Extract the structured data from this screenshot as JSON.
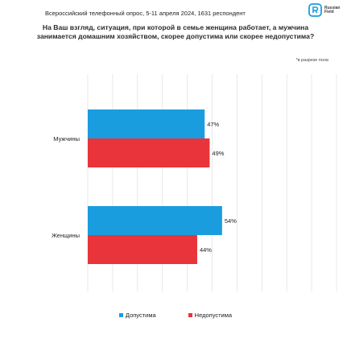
{
  "header": {
    "survey_info": "Всероссийский телефонный опрос, 5-11 апреля 2024, 1631 респондент",
    "brand_line1": "Russian",
    "brand_line2": "Field"
  },
  "question": "На Ваш взгляд, ситуация, при которой в семье женщина работает, а мужчина занимается домашним хозяйством, скорее допустима или скорее недопустима?",
  "note": "*в разрезе пола",
  "colors": {
    "acceptable": "#1a9ddf",
    "unacceptable": "#e8343a",
    "brand": "#1a9ddf"
  },
  "chart_data": {
    "type": "bar",
    "orientation": "horizontal",
    "categories": [
      "Мужчины",
      "Женщины"
    ],
    "series": [
      {
        "name": "Допустима",
        "values": [
          47,
          54
        ],
        "labels": [
          "47%",
          "54%"
        ]
      },
      {
        "name": "Недопустима",
        "values": [
          49,
          44
        ],
        "labels": [
          "49%",
          "44%"
        ]
      }
    ],
    "xlim": [
      0,
      100
    ],
    "grid": true,
    "legend_position": "bottom"
  }
}
